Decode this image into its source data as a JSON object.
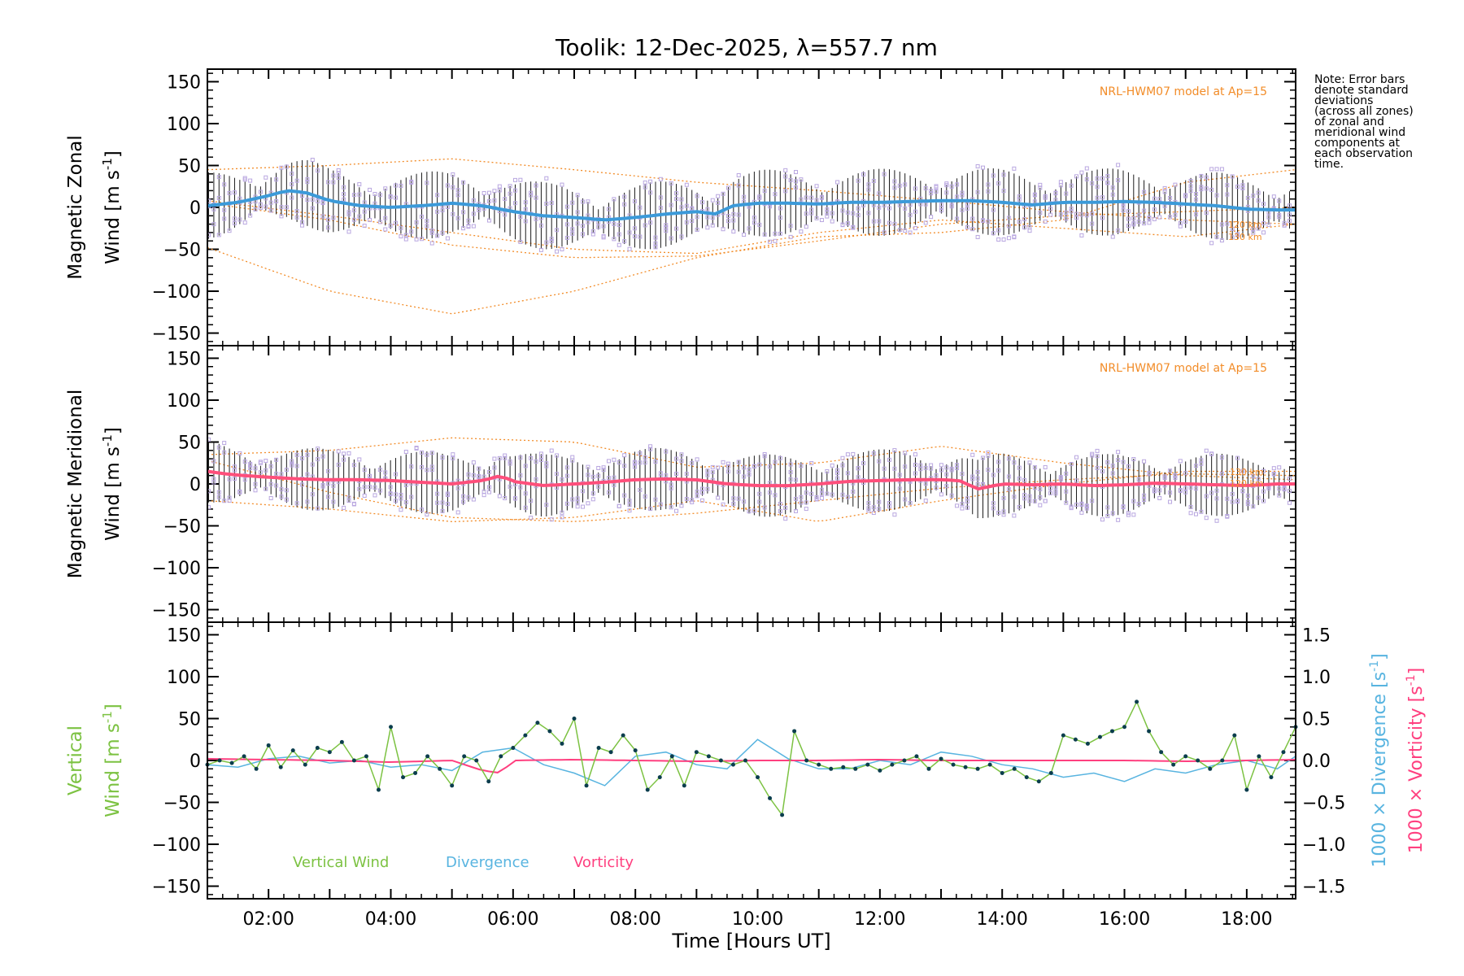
{
  "colors": {
    "axis": "#000000",
    "model": "#f28c28",
    "zonal_fit": "#3b9ad9",
    "meridional_fit": "#ff4f7b",
    "vertical": "#7cc242",
    "divergence": "#58b4e0",
    "vorticity": "#ff3f7f",
    "samples": "#b9a7e0",
    "marker": "#0b3d4d"
  },
  "note_lines": [
    "Note: Error bars",
    "denote standard",
    "deviations",
    "(across all zones)",
    "of zonal and",
    "meridional wind",
    "components at",
    "each observation",
    "time."
  ],
  "chart_data": [
    {
      "id": "zonal",
      "type": "line",
      "title": "Toolik: 12-Dec-2025, λ=557.7 nm",
      "ylabel_line1": "Magnetic Zonal",
      "ylabel_line2": "Wind [m s-1]",
      "ylabel_units_prefix": "Wind [m s",
      "ylabel_units_suffix": "]",
      "ylim": [
        -165,
        165
      ],
      "yticks": [
        150,
        100,
        50,
        0,
        -50,
        -100,
        -150
      ],
      "ytick_labels": [
        "150",
        "100",
        "50",
        "0",
        "−50",
        "−100",
        "−150"
      ],
      "xlim": [
        1.0,
        18.8
      ],
      "model_label": "NRL-HWM07 model at Ap=15",
      "model_altitude_labels": [
        "120 km",
        "130 km"
      ],
      "model_curves": [
        {
          "name": "upper",
          "x": [
            1.0,
            3.0,
            5.0,
            7.0,
            9.0,
            11.0,
            13.0,
            15.0,
            17.0,
            18.8
          ],
          "y": [
            45,
            50,
            58,
            45,
            30,
            20,
            8,
            -5,
            -15,
            -20
          ]
        },
        {
          "name": "lower",
          "x": [
            1.0,
            3.0,
            5.0,
            7.0,
            9.0,
            11.0,
            13.0,
            15.0,
            17.0,
            18.8
          ],
          "y": [
            -48,
            -100,
            -127,
            -100,
            -60,
            -35,
            -30,
            -15,
            30,
            45
          ]
        },
        {
          "name": "mid-a",
          "x": [
            1.0,
            3.0,
            5.0,
            7.0,
            9.0,
            11.0,
            13.0,
            15.0,
            17.0,
            18.8
          ],
          "y": [
            8,
            -10,
            -30,
            -50,
            -55,
            -30,
            -15,
            -25,
            -35,
            -20
          ]
        },
        {
          "name": "mid-b",
          "x": [
            1.0,
            3.0,
            5.0,
            7.0,
            9.0,
            11.0,
            13.0,
            15.0,
            17.0,
            18.8
          ],
          "y": [
            5,
            -15,
            -45,
            -60,
            -58,
            -40,
            -20,
            -10,
            -5,
            0
          ]
        }
      ],
      "fit_series": {
        "name": "Zonal wind",
        "x": [
          1.0,
          1.5,
          2.0,
          2.3,
          2.6,
          3.0,
          3.5,
          4.0,
          4.5,
          5.0,
          5.5,
          6.0,
          6.5,
          7.0,
          7.5,
          8.0,
          8.5,
          9.0,
          9.3,
          9.6,
          10.0,
          10.5,
          11.0,
          11.5,
          12.0,
          12.5,
          13.0,
          13.5,
          14.0,
          14.5,
          15.0,
          15.5,
          16.0,
          16.5,
          17.0,
          17.5,
          18.0,
          18.5,
          18.8
        ],
        "y": [
          2,
          6,
          14,
          20,
          18,
          8,
          2,
          0,
          2,
          5,
          2,
          -5,
          -10,
          -12,
          -15,
          -12,
          -8,
          -5,
          -8,
          2,
          5,
          5,
          4,
          6,
          6,
          7,
          8,
          8,
          6,
          3,
          6,
          6,
          7,
          6,
          4,
          2,
          -2,
          -3,
          -3
        ]
      }
    },
    {
      "id": "meridional",
      "type": "line",
      "ylabel_line1": "Magnetic Meridional",
      "ylabel_units_prefix": "Wind [m s",
      "ylabel_units_suffix": "]",
      "ylim": [
        -165,
        165
      ],
      "yticks": [
        150,
        100,
        50,
        0,
        -50,
        -100,
        -150
      ],
      "ytick_labels": [
        "150",
        "100",
        "50",
        "0",
        "−50",
        "−100",
        "−150"
      ],
      "xlim": [
        1.0,
        18.8
      ],
      "model_label": "NRL-HWM07 model at Ap=15",
      "model_altitude_labels": [
        "130 km",
        "120 km"
      ],
      "model_curves": [
        {
          "name": "upper",
          "x": [
            1.0,
            3.0,
            5.0,
            7.0,
            9.0,
            11.0,
            13.0,
            15.0,
            17.0,
            18.8
          ],
          "y": [
            35,
            40,
            55,
            50,
            20,
            25,
            45,
            25,
            10,
            5
          ]
        },
        {
          "name": "lower",
          "x": [
            1.0,
            3.0,
            5.0,
            7.0,
            9.0,
            11.0,
            13.0,
            15.0,
            17.0,
            18.8
          ],
          "y": [
            28,
            -10,
            -40,
            -45,
            -35,
            -20,
            -5,
            5,
            12,
            10
          ]
        },
        {
          "name": "mid-a",
          "x": [
            1.0,
            3.0,
            5.0,
            7.0,
            9.0,
            11.0,
            13.0,
            15.0,
            17.0,
            18.8
          ],
          "y": [
            -20,
            -30,
            -45,
            -40,
            -20,
            -45,
            -20,
            0,
            15,
            15
          ]
        }
      ],
      "fit_series": {
        "name": "Meridional wind",
        "x": [
          1.0,
          1.3,
          1.6,
          2.0,
          2.5,
          3.0,
          3.5,
          4.0,
          4.5,
          5.0,
          5.5,
          5.8,
          6.0,
          6.5,
          7.0,
          7.5,
          8.0,
          8.5,
          9.0,
          9.5,
          10.0,
          10.5,
          11.0,
          11.5,
          12.0,
          12.5,
          13.0,
          13.3,
          13.6,
          14.0,
          14.5,
          15.0,
          15.5,
          16.0,
          16.5,
          17.0,
          17.5,
          18.0,
          18.5,
          18.8
        ],
        "y": [
          15,
          12,
          10,
          8,
          6,
          5,
          5,
          4,
          2,
          0,
          4,
          10,
          3,
          -2,
          0,
          2,
          5,
          6,
          5,
          0,
          -2,
          -2,
          0,
          3,
          4,
          5,
          5,
          4,
          -6,
          0,
          -1,
          0,
          -2,
          -1,
          1,
          0,
          -1,
          -2,
          0,
          0
        ]
      }
    },
    {
      "id": "vertical",
      "type": "line",
      "ylabel_line1": "Vertical",
      "ylabel_units_prefix": "Wind [m s",
      "ylabel_units_suffix": "]",
      "ylim": [
        -165,
        165
      ],
      "yticks": [
        150,
        100,
        50,
        0,
        -50,
        -100,
        -150
      ],
      "ytick_labels": [
        "150",
        "100",
        "50",
        "0",
        "−50",
        "−100",
        "−150"
      ],
      "xlabel": "Time [Hours UT]",
      "xlim": [
        1.0,
        18.8
      ],
      "xticks": [
        2,
        4,
        6,
        8,
        10,
        12,
        14,
        16,
        18
      ],
      "xtick_labels": [
        "02:00",
        "04:00",
        "06:00",
        "08:00",
        "10:00",
        "12:00",
        "14:00",
        "16:00",
        "18:00"
      ],
      "y2lim": [
        -1.65,
        1.65
      ],
      "y2ticks": [
        1.5,
        1.0,
        0.5,
        0.0,
        -0.5,
        -1.0,
        -1.5
      ],
      "y2tick_labels": [
        "1.5",
        "1.0",
        "0.5",
        "0.0",
        "−0.5",
        "−1.0",
        "−1.5"
      ],
      "y2label_divergence": "1000 × Divergence [s-1]",
      "y2label_divergence_prefix": "1000 × Divergence [s",
      "y2label_vorticity": "1000 × Vorticity [s-1]",
      "y2label_vorticity_prefix": "1000 × Vorticity [s",
      "superscript": "-1",
      "legend": [
        "Vertical Wind",
        "Divergence",
        "Vorticity"
      ],
      "series": [
        {
          "name": "Vertical Wind",
          "x": [
            1.0,
            1.2,
            1.4,
            1.6,
            1.8,
            2.0,
            2.2,
            2.4,
            2.6,
            2.8,
            3.0,
            3.2,
            3.4,
            3.6,
            3.8,
            4.0,
            4.2,
            4.4,
            4.6,
            4.8,
            5.0,
            5.2,
            5.4,
            5.6,
            5.8,
            6.0,
            6.2,
            6.4,
            6.6,
            6.8,
            7.0,
            7.2,
            7.4,
            7.6,
            7.8,
            8.0,
            8.2,
            8.4,
            8.6,
            8.8,
            9.0,
            9.2,
            9.4,
            9.6,
            9.8,
            10.0,
            10.2,
            10.4,
            10.6,
            10.8,
            11.0,
            11.2,
            11.4,
            11.6,
            11.8,
            12.0,
            12.2,
            12.4,
            12.6,
            12.8,
            13.0,
            13.2,
            13.4,
            13.6,
            13.8,
            14.0,
            14.2,
            14.4,
            14.6,
            14.8,
            15.0,
            15.2,
            15.4,
            15.6,
            15.8,
            16.0,
            16.2,
            16.4,
            16.6,
            16.8,
            17.0,
            17.2,
            17.4,
            17.6,
            17.8,
            18.0,
            18.2,
            18.4,
            18.6,
            18.8
          ],
          "y": [
            -5,
            0,
            -3,
            5,
            -10,
            18,
            -8,
            12,
            -5,
            15,
            10,
            22,
            0,
            5,
            -35,
            40,
            -20,
            -15,
            5,
            -10,
            -30,
            5,
            0,
            -25,
            5,
            15,
            30,
            45,
            35,
            20,
            50,
            -30,
            15,
            10,
            30,
            12,
            -35,
            -20,
            5,
            -30,
            10,
            5,
            0,
            -5,
            0,
            -20,
            -45,
            -65,
            35,
            0,
            -5,
            -10,
            -8,
            -10,
            -5,
            -12,
            -5,
            0,
            5,
            -10,
            2,
            -5,
            -8,
            -10,
            -5,
            -15,
            -10,
            -20,
            -25,
            -15,
            30,
            25,
            20,
            28,
            35,
            40,
            70,
            35,
            10,
            -5,
            5,
            0,
            -10,
            0,
            30,
            -35,
            5,
            -20,
            10,
            40
          ]
        },
        {
          "name": "Divergence",
          "x": [
            1.0,
            1.5,
            2.0,
            2.5,
            3.0,
            3.5,
            4.0,
            4.5,
            5.0,
            5.5,
            6.0,
            6.5,
            7.0,
            7.5,
            8.0,
            8.5,
            9.0,
            9.5,
            10.0,
            10.5,
            11.0,
            11.5,
            12.0,
            12.5,
            13.0,
            13.5,
            14.0,
            14.5,
            15.0,
            15.5,
            16.0,
            16.5,
            17.0,
            17.5,
            18.0,
            18.5,
            18.8
          ],
          "y": [
            -0.05,
            -0.08,
            0.02,
            0.05,
            -0.03,
            0.0,
            -0.08,
            -0.05,
            -0.12,
            0.1,
            0.15,
            -0.05,
            -0.15,
            -0.3,
            0.05,
            0.1,
            -0.05,
            -0.1,
            0.25,
            0.02,
            -0.1,
            -0.1,
            0.0,
            -0.05,
            0.1,
            0.05,
            -0.05,
            -0.1,
            -0.2,
            -0.15,
            -0.25,
            -0.1,
            -0.15,
            -0.05,
            0.0,
            -0.1,
            0.05
          ]
        },
        {
          "name": "Vorticity",
          "x": [
            1.0,
            2.0,
            3.0,
            4.0,
            5.0,
            5.5,
            5.8,
            6.0,
            7.0,
            8.0,
            9.0,
            10.0,
            11.0,
            12.0,
            13.0,
            14.0,
            15.0,
            16.0,
            17.0,
            18.0,
            18.8
          ],
          "y": [
            0.02,
            0.01,
            0.0,
            -0.02,
            0.0,
            -0.12,
            -0.15,
            0.0,
            0.01,
            0.0,
            -0.01,
            0.0,
            0.0,
            0.01,
            0.0,
            0.0,
            0.0,
            0.0,
            -0.01,
            0.0,
            0.01
          ]
        }
      ]
    }
  ]
}
